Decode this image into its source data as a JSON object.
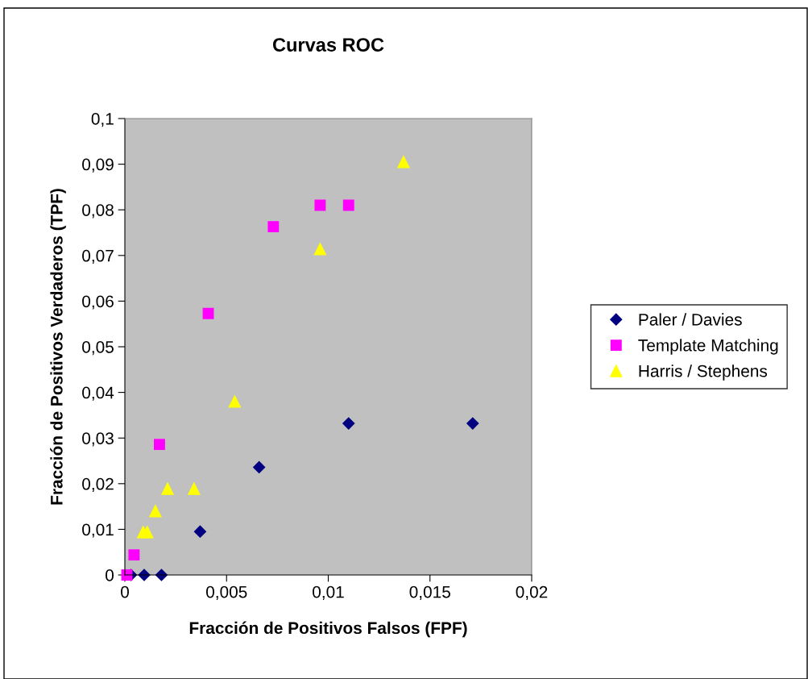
{
  "chart_data": {
    "type": "scatter",
    "title": "Curvas ROC",
    "xlabel": "Fracción de Positivos Falsos (FPF)",
    "ylabel": "Fracción de Positivos Verdaderos (TPF)",
    "xlim": [
      0,
      0.02
    ],
    "xticks": [
      {
        "value": 0,
        "label": "0"
      },
      {
        "value": 0.005,
        "label": "0,005"
      },
      {
        "value": 0.01,
        "label": "0,01"
      },
      {
        "value": 0.015,
        "label": "0,015"
      },
      {
        "value": 0.02,
        "label": "0,02"
      }
    ],
    "ylim": [
      0,
      0.1
    ],
    "yticks": [
      {
        "value": 0,
        "label": "0"
      },
      {
        "value": 0.01,
        "label": "0,01"
      },
      {
        "value": 0.02,
        "label": "0,02"
      },
      {
        "value": 0.03,
        "label": "0,03"
      },
      {
        "value": 0.04,
        "label": "0,04"
      },
      {
        "value": 0.05,
        "label": "0,05"
      },
      {
        "value": 0.06,
        "label": "0,06"
      },
      {
        "value": 0.07,
        "label": "0,07"
      },
      {
        "value": 0.08,
        "label": "0,08"
      },
      {
        "value": 0.09,
        "label": "0,09"
      },
      {
        "value": 0.1,
        "label": "0,1"
      }
    ],
    "grid": false,
    "legend": "right",
    "series": [
      {
        "name": "Paler / Davies",
        "color": "#000080",
        "marker": "diamond",
        "x": [
          0.0003,
          0.00095,
          0.0018,
          0.0037,
          0.0066,
          0.011,
          0.0171
        ],
        "values": [
          0,
          0,
          0,
          0.0095,
          0.0236,
          0.0332,
          0.0332
        ]
      },
      {
        "name": "Template Matching",
        "color": "#ff00ff",
        "marker": "square",
        "x": [
          0.0001,
          0.00045,
          0.0017,
          0.0041,
          0.0073,
          0.0096,
          0.011
        ],
        "values": [
          0,
          0.0044,
          0.0286,
          0.0573,
          0.0763,
          0.081,
          0.081
        ]
      },
      {
        "name": "Harris / Stephens",
        "color": "#ffff00",
        "marker": "triangle",
        "x": [
          0.0009,
          0.0011,
          0.0015,
          0.0021,
          0.0034,
          0.0054,
          0.0096,
          0.0137
        ],
        "values": [
          0.0094,
          0.0094,
          0.014,
          0.0189,
          0.0189,
          0.038,
          0.0714,
          0.0905
        ]
      }
    ]
  }
}
